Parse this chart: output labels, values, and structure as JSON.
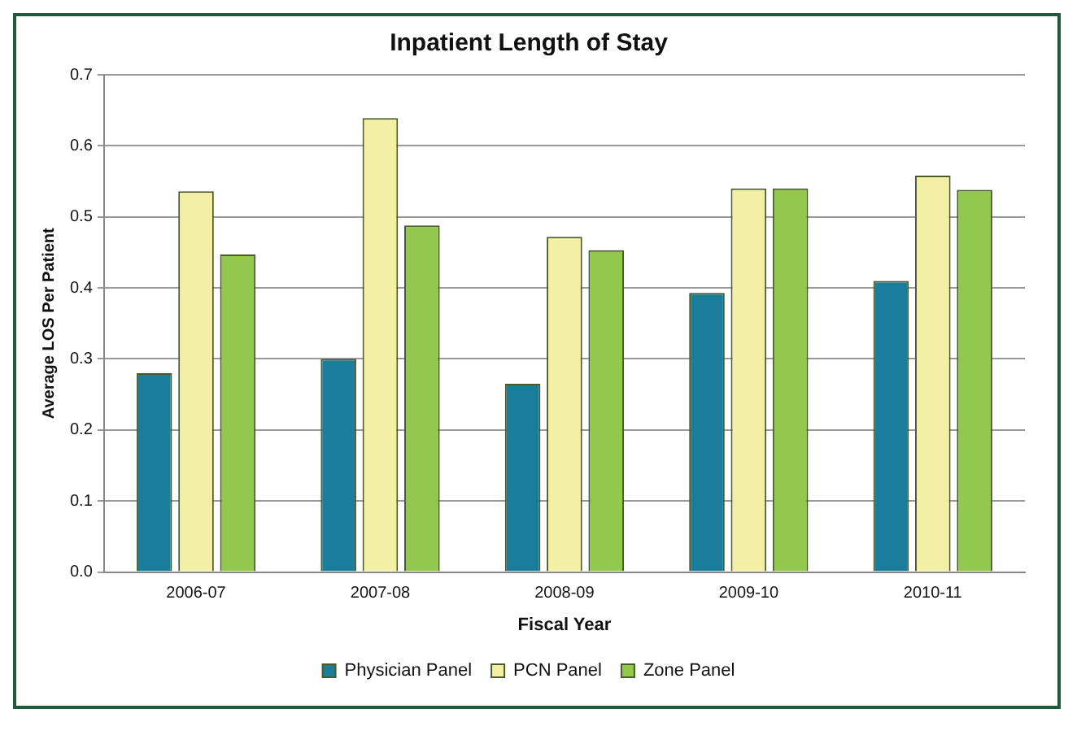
{
  "chart_data": {
    "type": "bar",
    "title": "Inpatient Length of Stay",
    "xlabel": "Fiscal Year",
    "ylabel": "Average LOS Per Patient",
    "categories": [
      "2006-07",
      "2007-08",
      "2008-09",
      "2009-10",
      "2010-11"
    ],
    "series": [
      {
        "name": "Physician Panel",
        "color": "#1a7d9c",
        "values": [
          0.28,
          0.3,
          0.265,
          0.393,
          0.41
        ]
      },
      {
        "name": "PCN Panel",
        "color": "#f3f0a6",
        "values": [
          0.536,
          0.639,
          0.472,
          0.54,
          0.558
        ]
      },
      {
        "name": "Zone Panel",
        "color": "#92c84e",
        "values": [
          0.447,
          0.488,
          0.453,
          0.54,
          0.538
        ]
      }
    ],
    "ylim": [
      0,
      0.7
    ],
    "yticks": [
      {
        "value": 0,
        "label": "0.0"
      },
      {
        "value": 0.1,
        "label": "0.1"
      },
      {
        "value": 0.2,
        "label": "0.2"
      },
      {
        "value": 0.3,
        "label": "0.3"
      },
      {
        "value": 0.4,
        "label": "0.4"
      },
      {
        "value": 0.5,
        "label": "0.5"
      },
      {
        "value": 0.6,
        "label": "0.6"
      },
      {
        "value": 0.7,
        "label": "0.7"
      }
    ],
    "grid": "y",
    "legend": "bottom"
  }
}
